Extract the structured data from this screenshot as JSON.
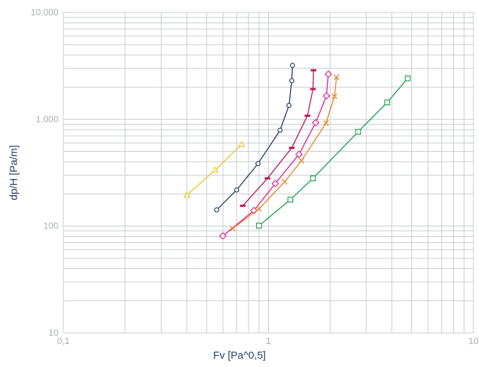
{
  "chart_data": {
    "type": "scatter",
    "xlabel": "Fv [Pa^0,5]",
    "ylabel": "dp/H [Pa/m]",
    "x_scale": "log",
    "y_scale": "log",
    "xlim": [
      0.1,
      10
    ],
    "ylim": [
      10,
      10000
    ],
    "x_ticks": [
      {
        "value": 0.1,
        "label": "0,1"
      },
      {
        "value": 1,
        "label": "1"
      },
      {
        "value": 10,
        "label": "10"
      }
    ],
    "y_ticks": [
      {
        "value": 10,
        "label": "10"
      },
      {
        "value": 100,
        "label": "100"
      },
      {
        "value": 1000,
        "label": "1.000"
      },
      {
        "value": 10000,
        "label": "10.000"
      }
    ],
    "grid": true,
    "colors": {
      "grid": "#c6cbd1",
      "tick_text": "#a9aeb4",
      "label_text": "#1f3f68"
    },
    "series": [
      {
        "marker": "triangle",
        "color": "#f2c12e",
        "x": [
          0.4,
          0.55,
          0.74
        ],
        "y": [
          195,
          335,
          580
        ]
      },
      {
        "marker": "circle",
        "color": "#1f3f68",
        "x": [
          0.56,
          0.7,
          0.89,
          1.14,
          1.26,
          1.3,
          1.31
        ],
        "y": [
          142,
          218,
          385,
          790,
          1350,
          2300,
          3200
        ]
      },
      {
        "marker": "dash",
        "color": "#c2185b",
        "x": [
          0.75,
          0.99,
          1.3,
          1.55,
          1.65,
          1.66
        ],
        "y": [
          155,
          280,
          540,
          1080,
          1920,
          2880
        ]
      },
      {
        "marker": "diamond",
        "color": "#e0218a",
        "x": [
          0.6,
          0.85,
          1.08,
          1.41,
          1.7,
          1.92,
          1.96
        ],
        "y": [
          81,
          140,
          250,
          470,
          930,
          1660,
          2650
        ]
      },
      {
        "marker": "x",
        "color": "#e8862a",
        "x": [
          0.67,
          0.9,
          1.2,
          1.45,
          1.91,
          2.1,
          2.15
        ],
        "y": [
          95,
          145,
          260,
          410,
          920,
          1640,
          2480
        ]
      },
      {
        "marker": "square",
        "color": "#1aa14a",
        "x": [
          0.9,
          1.28,
          1.65,
          2.74,
          3.8,
          4.78
        ],
        "y": [
          101,
          177,
          280,
          765,
          1440,
          2420
        ]
      }
    ]
  }
}
